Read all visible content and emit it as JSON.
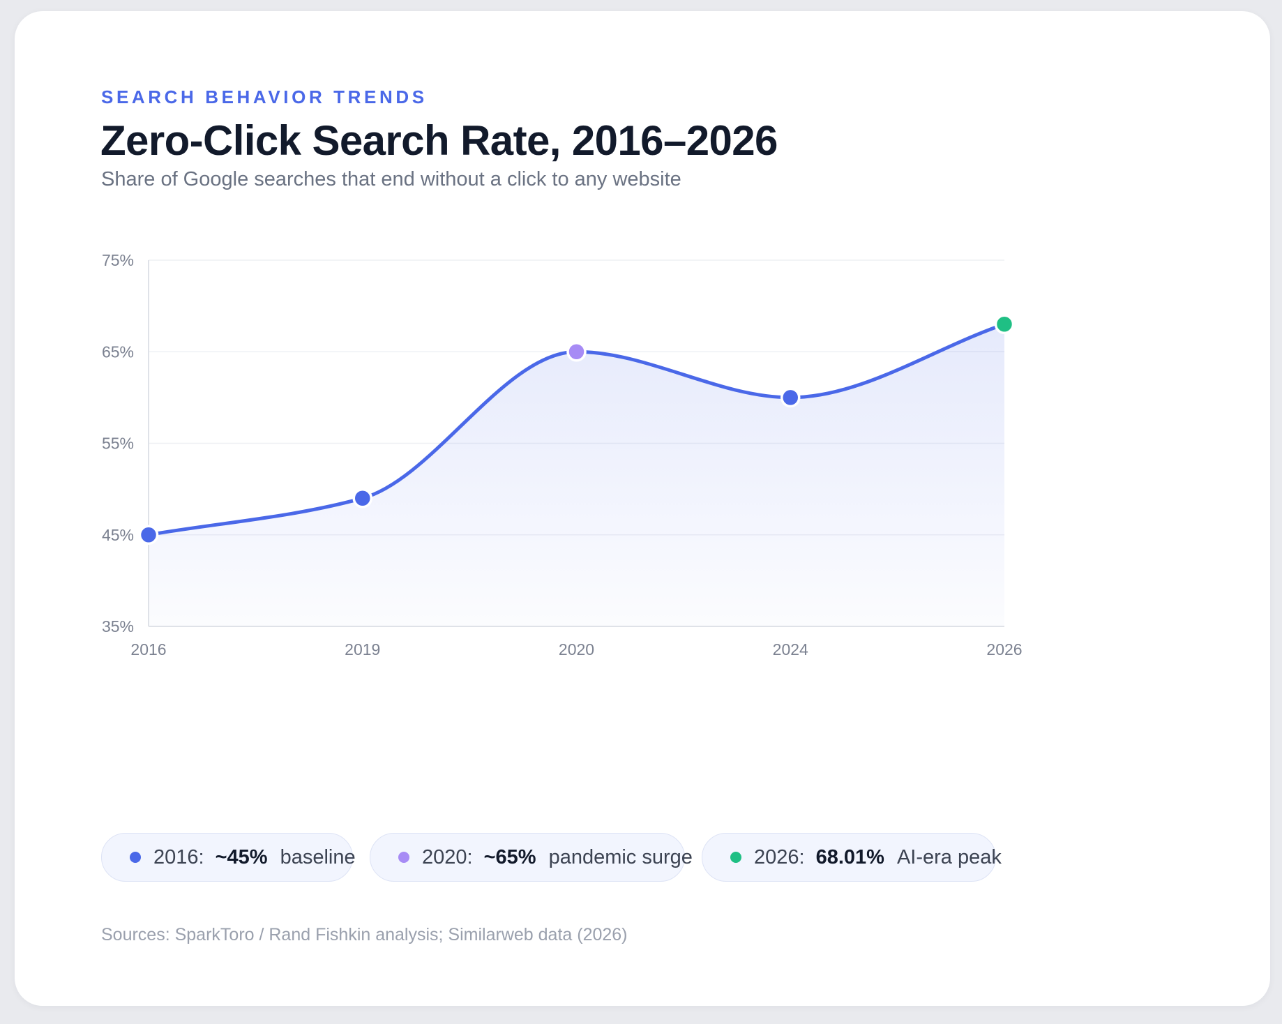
{
  "header": {
    "eyebrow": "SEARCH BEHAVIOR TRENDS",
    "title": "Zero-Click Search Rate, 2016–2026",
    "subtitle": "Share of Google searches that end without a click to any website"
  },
  "chart_data": {
    "type": "area",
    "categories": [
      "2016",
      "2019",
      "2020",
      "2024",
      "2026"
    ],
    "series": [
      {
        "values": [
          45,
          49,
          65,
          60,
          68.01
        ]
      }
    ],
    "point_colors": [
      "#4a68e8",
      "#4a68e8",
      "#a78bf5",
      "#4a68e8",
      "#1fbf84"
    ],
    "line_color": "#4a68e8",
    "ylim": [
      35,
      75
    ],
    "yticks": [
      35,
      45,
      55,
      65,
      75
    ],
    "ytick_labels": [
      "35%",
      "45%",
      "55%",
      "65%",
      "75%"
    ],
    "xlabel": "",
    "ylabel": "",
    "grid": true
  },
  "legend": [
    {
      "year": "2016:",
      "value": "~45%",
      "label": "baseline",
      "color": "#4a68e8"
    },
    {
      "year": "2020:",
      "value": "~65%",
      "label": "pandemic surge",
      "color": "#a78bf5"
    },
    {
      "year": "2026:",
      "value": "68.01%",
      "label": "AI-era peak",
      "color": "#1fbf84"
    }
  ],
  "sources": "Sources: SparkToro / Rand Fishkin analysis; Similarweb data (2026)"
}
